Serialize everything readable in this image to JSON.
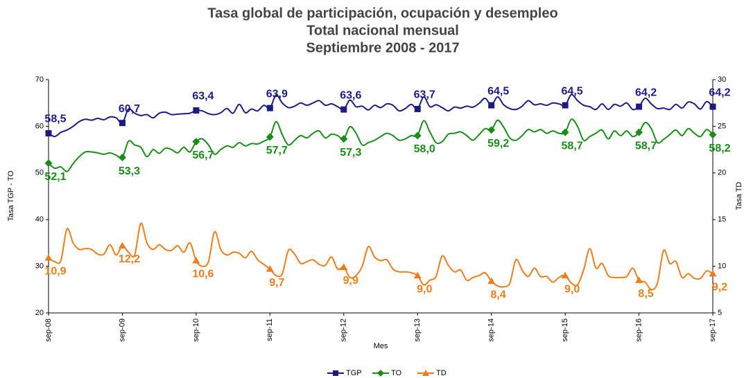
{
  "chart_data": {
    "type": "line",
    "title": "Tasa global de participación, ocupación y desempleo",
    "subtitle": "Total nacional mensual",
    "subtitle2": "Septiembre 2008 - 2017",
    "x_label": "Mes",
    "y_label": "Tasa TGP - TO",
    "y2_label": "Tasa  TD",
    "ylim": [
      20,
      70
    ],
    "yticks": [
      20,
      30,
      40,
      50,
      60,
      70
    ],
    "y2lim": [
      5,
      30
    ],
    "y2ticks": [
      5,
      10,
      15,
      20,
      25,
      30
    ],
    "legend": "bottom",
    "categories": [
      "sep-08",
      null,
      null,
      null,
      null,
      null,
      null,
      null,
      null,
      null,
      null,
      null,
      "sep-09",
      null,
      null,
      null,
      null,
      null,
      null,
      null,
      null,
      null,
      null,
      null,
      "sep-10",
      null,
      null,
      null,
      null,
      null,
      null,
      null,
      null,
      null,
      null,
      null,
      "sep-11",
      null,
      null,
      null,
      null,
      null,
      null,
      null,
      null,
      null,
      null,
      null,
      "sep-12",
      null,
      null,
      null,
      null,
      null,
      null,
      null,
      null,
      null,
      null,
      null,
      "sep-13",
      null,
      null,
      null,
      null,
      null,
      null,
      null,
      null,
      null,
      null,
      null,
      "sep-14",
      null,
      null,
      null,
      null,
      null,
      null,
      null,
      null,
      null,
      null,
      null,
      "sep-15",
      null,
      null,
      null,
      null,
      null,
      null,
      null,
      null,
      null,
      null,
      null,
      "sep-16",
      null,
      null,
      null,
      null,
      null,
      null,
      null,
      null,
      null,
      null,
      null,
      "sep-17"
    ],
    "series": [
      {
        "name": "TGP",
        "color": "#1c1c80",
        "marker": "square",
        "values": [
          58.5,
          57.8,
          58.7,
          59.2,
          60.0,
          61.0,
          61.5,
          61.3,
          61.7,
          61.4,
          62.0,
          61.8,
          60.7,
          63.7,
          62.8,
          62.3,
          62.5,
          61.8,
          62.8,
          63.0,
          62.5,
          62.6,
          62.7,
          62.8,
          63.4,
          63.3,
          62.7,
          62.5,
          62.9,
          63.8,
          62.8,
          64.7,
          62.9,
          63.7,
          63.3,
          64.5,
          63.9,
          66.7,
          65.0,
          64.0,
          64.3,
          65.0,
          64.5,
          65.0,
          65.5,
          64.5,
          64.8,
          64.2,
          63.6,
          65.6,
          64.2,
          64.3,
          63.5,
          64.5,
          64.0,
          64.8,
          64.5,
          63.3,
          63.8,
          64.7,
          63.7,
          66.3,
          64.2,
          64.6,
          64.0,
          63.3,
          64.1,
          63.9,
          64.3,
          64.1,
          64.9,
          66.0,
          64.5,
          66.3,
          64.6,
          63.8,
          63.6,
          64.3,
          65.5,
          64.6,
          64.8,
          64.5,
          65.0,
          64.8,
          64.5,
          66.8,
          65.5,
          64.5,
          64.2,
          63.6,
          64.8,
          63.6,
          64.7,
          64.3,
          65.0,
          63.6,
          64.2,
          66.0,
          64.8,
          63.8,
          63.9,
          63.6,
          64.7,
          63.9,
          65.2,
          64.8,
          63.7,
          65.3,
          64.2
        ],
        "value_labels": [
          "58,5",
          null,
          null,
          null,
          null,
          null,
          null,
          null,
          null,
          null,
          null,
          null,
          "60,7",
          null,
          null,
          null,
          null,
          null,
          null,
          null,
          null,
          null,
          null,
          null,
          "63,4",
          null,
          null,
          null,
          null,
          null,
          null,
          null,
          null,
          null,
          null,
          null,
          "63,9",
          null,
          null,
          null,
          null,
          null,
          null,
          null,
          null,
          null,
          null,
          null,
          "63,6",
          null,
          null,
          null,
          null,
          null,
          null,
          null,
          null,
          null,
          null,
          null,
          "63,7",
          null,
          null,
          null,
          null,
          null,
          null,
          null,
          null,
          null,
          null,
          null,
          "64,5",
          null,
          null,
          null,
          null,
          null,
          null,
          null,
          null,
          null,
          null,
          null,
          "64,5",
          null,
          null,
          null,
          null,
          null,
          null,
          null,
          null,
          null,
          null,
          null,
          "64,2",
          null,
          null,
          null,
          null,
          null,
          null,
          null,
          null,
          null,
          null,
          null,
          "64,2"
        ]
      },
      {
        "name": "TO",
        "color": "#1a8c1a",
        "marker": "diamond",
        "values": [
          52.1,
          51.0,
          51.3,
          50.3,
          52.0,
          53.5,
          54.5,
          54.5,
          54.3,
          54.0,
          54.3,
          53.8,
          53.3,
          56.8,
          56.0,
          55.5,
          53.5,
          55.0,
          54.2,
          55.3,
          55.0,
          54.3,
          55.5,
          54.5,
          56.7,
          57.3,
          56.0,
          54.0,
          55.0,
          55.8,
          55.5,
          56.5,
          55.8,
          56.3,
          56.2,
          56.8,
          57.7,
          61.0,
          58.2,
          56.0,
          57.0,
          58.0,
          57.5,
          58.5,
          59.0,
          57.5,
          58.3,
          58.0,
          57.3,
          59.9,
          58.5,
          56.0,
          56.5,
          57.0,
          57.8,
          58.5,
          58.0,
          57.0,
          57.3,
          58.0,
          58.0,
          61.2,
          58.8,
          56.5,
          56.7,
          58.3,
          58.5,
          58.8,
          58.0,
          57.0,
          58.2,
          59.5,
          59.2,
          61.3,
          59.8,
          57.5,
          57.0,
          58.0,
          59.3,
          58.8,
          59.3,
          58.5,
          59.0,
          58.5,
          58.7,
          61.5,
          60.0,
          57.0,
          57.8,
          58.5,
          59.2,
          57.3,
          59.0,
          58.0,
          59.0,
          57.8,
          58.7,
          60.8,
          59.5,
          56.5,
          57.2,
          58.2,
          59.2,
          58.0,
          59.5,
          58.5,
          57.8,
          59.3,
          58.2
        ],
        "value_labels": [
          "52,1",
          null,
          null,
          null,
          null,
          null,
          null,
          null,
          null,
          null,
          null,
          null,
          "53,3",
          null,
          null,
          null,
          null,
          null,
          null,
          null,
          null,
          null,
          null,
          null,
          "56,7",
          null,
          null,
          null,
          null,
          null,
          null,
          null,
          null,
          null,
          null,
          null,
          "57,7",
          null,
          null,
          null,
          null,
          null,
          null,
          null,
          null,
          null,
          null,
          null,
          "57,3",
          null,
          null,
          null,
          null,
          null,
          null,
          null,
          null,
          null,
          null,
          null,
          "58,0",
          null,
          null,
          null,
          null,
          null,
          null,
          null,
          null,
          null,
          null,
          null,
          "59,2",
          null,
          null,
          null,
          null,
          null,
          null,
          null,
          null,
          null,
          null,
          null,
          "58,7",
          null,
          null,
          null,
          null,
          null,
          null,
          null,
          null,
          null,
          null,
          null,
          "58,7",
          null,
          null,
          null,
          null,
          null,
          null,
          null,
          null,
          null,
          null,
          null,
          "58,2"
        ]
      },
      {
        "name": "TD",
        "color": "#f07d1c",
        "marker": "triangle",
        "axis": "y2",
        "values": [
          10.9,
          10.5,
          10.6,
          14.0,
          12.5,
          11.8,
          11.9,
          11.8,
          11.3,
          11.3,
          12.3,
          11.2,
          12.2,
          11.5,
          11.2,
          14.6,
          12.5,
          11.8,
          12.3,
          11.8,
          11.7,
          12.2,
          11.5,
          12.5,
          10.6,
          10.0,
          10.5,
          13.7,
          11.8,
          11.2,
          11.5,
          11.4,
          10.9,
          11.6,
          10.7,
          10.2,
          9.7,
          9.0,
          9.2,
          11.7,
          11.3,
          10.3,
          10.5,
          10.7,
          10.2,
          10.1,
          11.0,
          9.7,
          9.9,
          8.8,
          9.0,
          10.0,
          12.1,
          11.0,
          10.6,
          10.7,
          9.7,
          9.4,
          9.4,
          9.3,
          9.0,
          8.0,
          8.5,
          8.9,
          11.1,
          10.1,
          9.4,
          9.6,
          8.5,
          8.8,
          9.0,
          9.3,
          8.4,
          7.9,
          7.8,
          8.2,
          10.7,
          9.6,
          8.9,
          9.8,
          8.9,
          8.9,
          8.3,
          8.8,
          9.0,
          8.2,
          8.0,
          9.6,
          11.9,
          9.8,
          10.3,
          9.0,
          8.8,
          8.8,
          8.9,
          9.8,
          8.5,
          8.3,
          7.5,
          8.2,
          11.7,
          10.3,
          10.5,
          8.8,
          9.2,
          8.7,
          8.7,
          9.5,
          9.2
        ],
        "value_labels": [
          "10,9",
          null,
          null,
          null,
          null,
          null,
          null,
          null,
          null,
          null,
          null,
          null,
          "12,2",
          null,
          null,
          null,
          null,
          null,
          null,
          null,
          null,
          null,
          null,
          null,
          "10,6",
          null,
          null,
          null,
          null,
          null,
          null,
          null,
          null,
          null,
          null,
          null,
          "9,7",
          null,
          null,
          null,
          null,
          null,
          null,
          null,
          null,
          null,
          null,
          null,
          "9,9",
          null,
          null,
          null,
          null,
          null,
          null,
          null,
          null,
          null,
          null,
          null,
          "9,0",
          null,
          null,
          null,
          null,
          null,
          null,
          null,
          null,
          null,
          null,
          null,
          "8,4",
          null,
          null,
          null,
          null,
          null,
          null,
          null,
          null,
          null,
          null,
          null,
          "9,0",
          null,
          null,
          null,
          null,
          null,
          null,
          null,
          null,
          null,
          null,
          null,
          "8,5",
          null,
          null,
          null,
          null,
          null,
          null,
          null,
          null,
          null,
          null,
          null,
          "9,2"
        ]
      }
    ]
  }
}
